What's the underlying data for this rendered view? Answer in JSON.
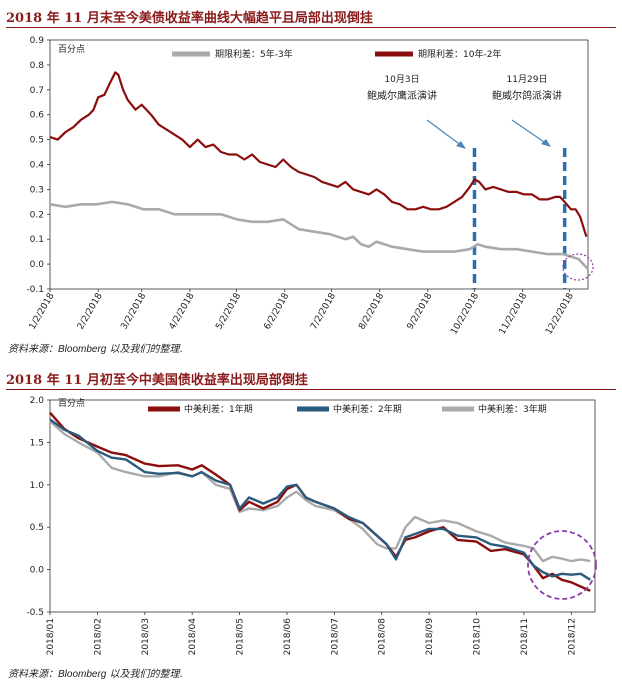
{
  "chart1": {
    "title": "2018 年 11 月末至今美债收益率曲线大幅趋平且局部出现倒挂",
    "source_prefix": "资料来源：",
    "source_brand": "Bloomberg",
    "source_suffix": " 以及我们的整理.",
    "unit": "百分点",
    "annotation1": {
      "date": "10月3日",
      "text": "鲍威尔鹰派演讲"
    },
    "annotation2": {
      "date": "11月29日",
      "text": "鲍威尔鸽派演讲"
    }
  },
  "chart2": {
    "title": "2018 年 11 月初至今中美国债收益率出现局部倒挂",
    "source_prefix": "资料来源：",
    "source_brand": "Bloomberg",
    "source_suffix": " 以及我们的整理.",
    "unit": "百分点"
  },
  "colors": {
    "red": "#8b0e0e",
    "grey": "#aaaaaa",
    "blue": "#2b5a7d",
    "dash": "#2a6fb0",
    "circle": "#8a3fa8"
  },
  "chart_data": [
    {
      "type": "line",
      "title": "2018 年 11 月末至今美债收益率曲线大幅趋平且局部出现倒挂",
      "ylabel": "百分点",
      "ylim": [
        -0.1,
        0.9
      ],
      "yticks": [
        "-0.1",
        "0.0",
        "0.1",
        "0.2",
        "0.3",
        "0.4",
        "0.5",
        "0.6",
        "0.7",
        "0.8",
        "0.9"
      ],
      "xticks": [
        "1/2/2018",
        "2/2/2018",
        "3/2/2018",
        "4/2/2018",
        "5/2/2018",
        "6/2/2018",
        "7/2/2018",
        "8/2/2018",
        "9/2/2018",
        "10/2/2018",
        "11/2/2018",
        "12/2/2018"
      ],
      "x_range_days": [
        0,
        346
      ],
      "series": [
        {
          "name": "期限利差：10年-2年",
          "color": "#8b0e0e",
          "points": [
            [
              0,
              0.51
            ],
            [
              5,
              0.5
            ],
            [
              10,
              0.53
            ],
            [
              15,
              0.55
            ],
            [
              20,
              0.58
            ],
            [
              25,
              0.6
            ],
            [
              28,
              0.62
            ],
            [
              31,
              0.67
            ],
            [
              35,
              0.68
            ],
            [
              38,
              0.72
            ],
            [
              42,
              0.77
            ],
            [
              44,
              0.76
            ],
            [
              47,
              0.7
            ],
            [
              50,
              0.66
            ],
            [
              55,
              0.62
            ],
            [
              59,
              0.64
            ],
            [
              65,
              0.6
            ],
            [
              70,
              0.56
            ],
            [
              75,
              0.54
            ],
            [
              80,
              0.52
            ],
            [
              85,
              0.5
            ],
            [
              90,
              0.47
            ],
            [
              95,
              0.5
            ],
            [
              100,
              0.47
            ],
            [
              105,
              0.48
            ],
            [
              110,
              0.45
            ],
            [
              115,
              0.44
            ],
            [
              120,
              0.44
            ],
            [
              125,
              0.42
            ],
            [
              130,
              0.44
            ],
            [
              135,
              0.41
            ],
            [
              140,
              0.4
            ],
            [
              145,
              0.39
            ],
            [
              150,
              0.42
            ],
            [
              155,
              0.39
            ],
            [
              160,
              0.37
            ],
            [
              165,
              0.36
            ],
            [
              170,
              0.35
            ],
            [
              175,
              0.33
            ],
            [
              180,
              0.32
            ],
            [
              185,
              0.31
            ],
            [
              190,
              0.33
            ],
            [
              195,
              0.3
            ],
            [
              200,
              0.29
            ],
            [
              205,
              0.28
            ],
            [
              210,
              0.3
            ],
            [
              215,
              0.28
            ],
            [
              220,
              0.25
            ],
            [
              225,
              0.24
            ],
            [
              230,
              0.22
            ],
            [
              235,
              0.22
            ],
            [
              240,
              0.23
            ],
            [
              245,
              0.22
            ],
            [
              250,
              0.22
            ],
            [
              255,
              0.23
            ],
            [
              260,
              0.25
            ],
            [
              265,
              0.27
            ],
            [
              270,
              0.31
            ],
            [
              273,
              0.34
            ],
            [
              276,
              0.33
            ],
            [
              280,
              0.3
            ],
            [
              285,
              0.31
            ],
            [
              290,
              0.3
            ],
            [
              295,
              0.29
            ],
            [
              300,
              0.29
            ],
            [
              305,
              0.28
            ],
            [
              310,
              0.28
            ],
            [
              315,
              0.26
            ],
            [
              320,
              0.26
            ],
            [
              325,
              0.27
            ],
            [
              328,
              0.27
            ],
            [
              331,
              0.25
            ],
            [
              335,
              0.22
            ],
            [
              338,
              0.22
            ],
            [
              341,
              0.19
            ],
            [
              343,
              0.15
            ],
            [
              345,
              0.11
            ]
          ]
        },
        {
          "name": "期限利差：5年-3年",
          "color": "#aaaaaa",
          "points": [
            [
              0,
              0.24
            ],
            [
              10,
              0.23
            ],
            [
              20,
              0.24
            ],
            [
              30,
              0.24
            ],
            [
              40,
              0.25
            ],
            [
              50,
              0.24
            ],
            [
              60,
              0.22
            ],
            [
              70,
              0.22
            ],
            [
              80,
              0.2
            ],
            [
              90,
              0.2
            ],
            [
              100,
              0.2
            ],
            [
              110,
              0.2
            ],
            [
              120,
              0.18
            ],
            [
              130,
              0.17
            ],
            [
              140,
              0.17
            ],
            [
              150,
              0.18
            ],
            [
              160,
              0.14
            ],
            [
              170,
              0.13
            ],
            [
              180,
              0.12
            ],
            [
              190,
              0.1
            ],
            [
              195,
              0.11
            ],
            [
              200,
              0.08
            ],
            [
              205,
              0.07
            ],
            [
              210,
              0.09
            ],
            [
              220,
              0.07
            ],
            [
              230,
              0.06
            ],
            [
              240,
              0.05
            ],
            [
              250,
              0.05
            ],
            [
              260,
              0.05
            ],
            [
              270,
              0.06
            ],
            [
              275,
              0.08
            ],
            [
              280,
              0.07
            ],
            [
              290,
              0.06
            ],
            [
              300,
              0.06
            ],
            [
              310,
              0.05
            ],
            [
              320,
              0.04
            ],
            [
              330,
              0.04
            ],
            [
              335,
              0.03
            ],
            [
              340,
              0.02
            ],
            [
              343,
              0.0
            ],
            [
              346,
              -0.02
            ]
          ]
        }
      ],
      "annotations": [
        {
          "date": "10月3日",
          "text": "鲍威尔鹰派演讲",
          "x_day": 273
        },
        {
          "date": "11月29日",
          "text": "鲍威尔鸽派演讲",
          "x_day": 331
        }
      ]
    },
    {
      "type": "line",
      "title": "2018 年 11 月初至今中美国债收益率出现局部倒挂",
      "ylabel": "百分点",
      "ylim": [
        -0.5,
        2.0
      ],
      "yticks": [
        "-0.5",
        "0.0",
        "0.5",
        "1.0",
        "1.5",
        "2.0"
      ],
      "xticks": [
        "2018/01",
        "2018/02",
        "2018/03",
        "2018/04",
        "2018/05",
        "2018/06",
        "2018/07",
        "2018/08",
        "2018/09",
        "2018/10",
        "2018/11",
        "2018/12"
      ],
      "x_range_months": [
        0,
        11.5
      ],
      "series": [
        {
          "name": "中美利差：1年期",
          "color": "#8b0e0e",
          "points": [
            [
              0,
              1.85
            ],
            [
              0.3,
              1.66
            ],
            [
              0.6,
              1.55
            ],
            [
              1.0,
              1.45
            ],
            [
              1.3,
              1.38
            ],
            [
              1.6,
              1.35
            ],
            [
              2.0,
              1.25
            ],
            [
              2.3,
              1.22
            ],
            [
              2.7,
              1.23
            ],
            [
              3.0,
              1.18
            ],
            [
              3.2,
              1.23
            ],
            [
              3.5,
              1.12
            ],
            [
              3.8,
              1.0
            ],
            [
              4.0,
              0.7
            ],
            [
              4.2,
              0.8
            ],
            [
              4.5,
              0.72
            ],
            [
              4.8,
              0.8
            ],
            [
              5.0,
              0.95
            ],
            [
              5.2,
              1.0
            ],
            [
              5.4,
              0.85
            ],
            [
              5.6,
              0.8
            ],
            [
              6.0,
              0.72
            ],
            [
              6.3,
              0.6
            ],
            [
              6.6,
              0.55
            ],
            [
              6.9,
              0.4
            ],
            [
              7.1,
              0.3
            ],
            [
              7.3,
              0.15
            ],
            [
              7.5,
              0.35
            ],
            [
              7.7,
              0.38
            ],
            [
              8.0,
              0.45
            ],
            [
              8.3,
              0.5
            ],
            [
              8.6,
              0.35
            ],
            [
              9.0,
              0.33
            ],
            [
              9.3,
              0.22
            ],
            [
              9.6,
              0.24
            ],
            [
              10.0,
              0.18
            ],
            [
              10.2,
              0.05
            ],
            [
              10.4,
              -0.1
            ],
            [
              10.6,
              -0.05
            ],
            [
              10.8,
              -0.12
            ],
            [
              11.0,
              -0.15
            ],
            [
              11.2,
              -0.2
            ],
            [
              11.4,
              -0.25
            ]
          ]
        },
        {
          "name": "中美利差：2年期",
          "color": "#2b5a7d",
          "points": [
            [
              0,
              1.77
            ],
            [
              0.3,
              1.65
            ],
            [
              0.6,
              1.58
            ],
            [
              1.0,
              1.4
            ],
            [
              1.3,
              1.32
            ],
            [
              1.6,
              1.3
            ],
            [
              2.0,
              1.15
            ],
            [
              2.3,
              1.13
            ],
            [
              2.7,
              1.14
            ],
            [
              3.0,
              1.1
            ],
            [
              3.2,
              1.15
            ],
            [
              3.5,
              1.05
            ],
            [
              3.8,
              1.0
            ],
            [
              4.0,
              0.72
            ],
            [
              4.2,
              0.85
            ],
            [
              4.5,
              0.78
            ],
            [
              4.8,
              0.85
            ],
            [
              5.0,
              0.98
            ],
            [
              5.2,
              1.0
            ],
            [
              5.4,
              0.85
            ],
            [
              5.6,
              0.8
            ],
            [
              6.0,
              0.72
            ],
            [
              6.3,
              0.62
            ],
            [
              6.6,
              0.55
            ],
            [
              6.9,
              0.4
            ],
            [
              7.1,
              0.3
            ],
            [
              7.3,
              0.12
            ],
            [
              7.5,
              0.38
            ],
            [
              7.7,
              0.42
            ],
            [
              8.0,
              0.48
            ],
            [
              8.3,
              0.48
            ],
            [
              8.6,
              0.4
            ],
            [
              9.0,
              0.38
            ],
            [
              9.3,
              0.3
            ],
            [
              9.6,
              0.27
            ],
            [
              10.0,
              0.2
            ],
            [
              10.2,
              0.05
            ],
            [
              10.4,
              -0.03
            ],
            [
              10.6,
              -0.08
            ],
            [
              10.8,
              -0.05
            ],
            [
              11.0,
              -0.06
            ],
            [
              11.2,
              -0.05
            ],
            [
              11.4,
              -0.12
            ]
          ]
        },
        {
          "name": "中美利差：3年期",
          "color": "#aaaaaa",
          "points": [
            [
              0,
              1.75
            ],
            [
              0.3,
              1.6
            ],
            [
              0.6,
              1.5
            ],
            [
              1.0,
              1.38
            ],
            [
              1.3,
              1.2
            ],
            [
              1.6,
              1.15
            ],
            [
              2.0,
              1.1
            ],
            [
              2.3,
              1.1
            ],
            [
              2.7,
              1.15
            ],
            [
              3.0,
              1.1
            ],
            [
              3.2,
              1.15
            ],
            [
              3.5,
              1.0
            ],
            [
              3.8,
              0.95
            ],
            [
              4.0,
              0.68
            ],
            [
              4.2,
              0.72
            ],
            [
              4.5,
              0.7
            ],
            [
              4.8,
              0.75
            ],
            [
              5.0,
              0.85
            ],
            [
              5.2,
              0.92
            ],
            [
              5.4,
              0.82
            ],
            [
              5.6,
              0.75
            ],
            [
              6.0,
              0.7
            ],
            [
              6.3,
              0.6
            ],
            [
              6.6,
              0.48
            ],
            [
              6.9,
              0.3
            ],
            [
              7.1,
              0.25
            ],
            [
              7.3,
              0.25
            ],
            [
              7.5,
              0.5
            ],
            [
              7.7,
              0.62
            ],
            [
              8.0,
              0.55
            ],
            [
              8.3,
              0.58
            ],
            [
              8.6,
              0.55
            ],
            [
              9.0,
              0.45
            ],
            [
              9.3,
              0.4
            ],
            [
              9.6,
              0.32
            ],
            [
              10.0,
              0.28
            ],
            [
              10.2,
              0.25
            ],
            [
              10.4,
              0.1
            ],
            [
              10.6,
              0.15
            ],
            [
              10.8,
              0.13
            ],
            [
              11.0,
              0.1
            ],
            [
              11.2,
              0.12
            ],
            [
              11.4,
              0.1
            ]
          ]
        }
      ]
    }
  ]
}
